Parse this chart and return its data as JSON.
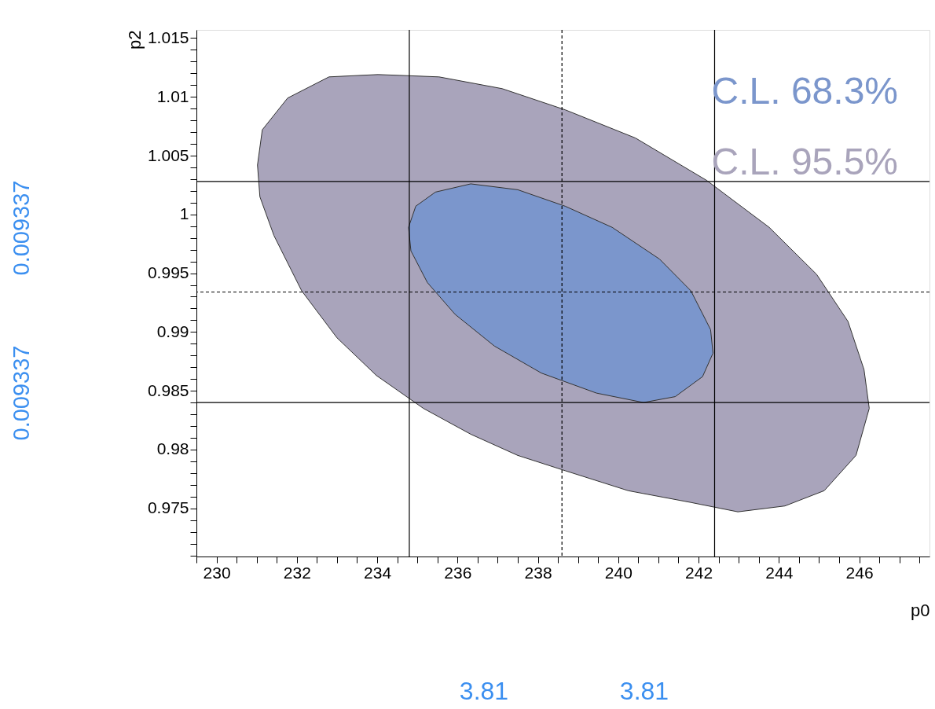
{
  "chart_data": {
    "type": "area",
    "xlabel": "p0",
    "ylabel": "p2",
    "xlim": [
      229.5,
      247.75
    ],
    "ylim": [
      0.9709,
      1.0157
    ],
    "xticks": [
      {
        "value": 229.5,
        "label": null
      },
      230,
      {
        "value": 230.5,
        "label": null
      },
      {
        "value": 231,
        "label": null
      },
      {
        "value": 231.5,
        "label": null
      },
      232,
      {
        "value": 232.5,
        "label": null
      },
      {
        "value": 233,
        "label": null
      },
      {
        "value": 233.5,
        "label": null
      },
      234,
      {
        "value": 234.5,
        "label": null
      },
      {
        "value": 235,
        "label": null
      },
      {
        "value": 235.5,
        "label": null
      },
      236,
      {
        "value": 236.5,
        "label": null
      },
      {
        "value": 237,
        "label": null
      },
      {
        "value": 237.5,
        "label": null
      },
      238,
      {
        "value": 238.5,
        "label": null
      },
      {
        "value": 239,
        "label": null
      },
      {
        "value": 239.5,
        "label": null
      },
      240,
      {
        "value": 240.5,
        "label": null
      },
      {
        "value": 241,
        "label": null
      },
      {
        "value": 241.5,
        "label": null
      },
      242,
      {
        "value": 242.5,
        "label": null
      },
      {
        "value": 243,
        "label": null
      },
      {
        "value": 243.5,
        "label": null
      },
      244,
      {
        "value": 244.5,
        "label": null
      },
      {
        "value": 245,
        "label": null
      },
      {
        "value": 245.5,
        "label": null
      },
      246,
      {
        "value": 246.5,
        "label": null
      },
      {
        "value": 247,
        "label": null
      },
      {
        "value": 247.5,
        "label": null
      }
    ],
    "yticks": [
      {
        "value": 0.971,
        "label": null
      },
      {
        "value": 0.972,
        "label": null
      },
      {
        "value": 0.973,
        "label": null
      },
      {
        "value": 0.974,
        "label": null
      },
      0.975,
      {
        "value": 0.976,
        "label": null
      },
      {
        "value": 0.977,
        "label": null
      },
      {
        "value": 0.978,
        "label": null
      },
      {
        "value": 0.979,
        "label": null
      },
      0.98,
      {
        "value": 0.981,
        "label": null
      },
      {
        "value": 0.982,
        "label": null
      },
      {
        "value": 0.983,
        "label": null
      },
      {
        "value": 0.984,
        "label": null
      },
      0.985,
      {
        "value": 0.986,
        "label": null
      },
      {
        "value": 0.987,
        "label": null
      },
      {
        "value": 0.988,
        "label": null
      },
      {
        "value": 0.989,
        "label": null
      },
      0.99,
      {
        "value": 0.991,
        "label": null
      },
      {
        "value": 0.992,
        "label": null
      },
      {
        "value": 0.993,
        "label": null
      },
      {
        "value": 0.994,
        "label": null
      },
      0.995,
      {
        "value": 0.996,
        "label": null
      },
      {
        "value": 0.997,
        "label": null
      },
      {
        "value": 0.998,
        "label": null
      },
      {
        "value": 0.999,
        "label": null
      },
      1,
      {
        "value": 1.001,
        "label": null
      },
      {
        "value": 1.002,
        "label": null
      },
      {
        "value": 1.003,
        "label": null
      },
      {
        "value": 1.004,
        "label": null
      },
      1.005,
      {
        "value": 1.006,
        "label": null
      },
      {
        "value": 1.007,
        "label": null
      },
      {
        "value": 1.008,
        "label": null
      },
      {
        "value": 1.009,
        "label": null
      },
      1.01,
      {
        "value": 1.011,
        "label": null
      },
      {
        "value": 1.012,
        "label": null
      },
      {
        "value": 1.013,
        "label": null
      },
      {
        "value": 1.014,
        "label": null
      },
      1.015
    ],
    "series": [
      {
        "name": "C.L. 95.5%",
        "color": "#a9a4bb",
        "x": [
          234.02,
          232.8,
          231.77,
          231.14,
          231.02,
          231.08,
          231.43,
          232.12,
          233.0,
          233.98,
          235.15,
          236.33,
          237.5,
          238.68,
          240.25,
          241.81,
          242.98,
          244.15,
          245.13,
          245.92,
          246.25,
          246.12,
          245.72,
          244.94,
          243.76,
          242.2,
          240.43,
          238.68,
          237.11,
          235.54,
          234.02
        ],
        "values": [
          1.0119,
          1.0117,
          1.0099,
          1.0072,
          1.0042,
          1.0015,
          0.9982,
          0.9935,
          0.9895,
          0.9863,
          0.9835,
          0.9813,
          0.9795,
          0.9782,
          0.9765,
          0.9755,
          0.9747,
          0.9752,
          0.9765,
          0.9795,
          0.9835,
          0.9868,
          0.9909,
          0.9949,
          0.9989,
          1.0029,
          1.0065,
          1.0089,
          1.0107,
          1.0117,
          1.0119
        ]
      },
      {
        "name": "C.L. 68.3%",
        "color": "#7b96cc",
        "x": [
          236.33,
          235.45,
          234.96,
          234.78,
          234.84,
          235.25,
          235.94,
          236.92,
          238.09,
          239.46,
          240.63,
          241.42,
          242.1,
          242.36,
          242.3,
          241.81,
          241.03,
          239.85,
          238.68,
          237.5,
          236.33
        ],
        "values": [
          1.0026,
          1.0019,
          1.0007,
          0.9989,
          0.9969,
          0.9942,
          0.9915,
          0.9888,
          0.9865,
          0.9848,
          0.984,
          0.9845,
          0.9862,
          0.9882,
          0.9902,
          0.9935,
          0.9962,
          0.9989,
          1.0007,
          1.0021,
          1.0026
        ]
      }
    ],
    "ref_lines": [
      {
        "axis": "x",
        "value": 234.8,
        "line_style": "solid"
      },
      {
        "axis": "x",
        "value": 238.6,
        "line_style": "dashed"
      },
      {
        "axis": "x",
        "value": 242.4,
        "line_style": "solid"
      },
      {
        "axis": "y",
        "value": 1.0028,
        "line_style": "solid"
      },
      {
        "axis": "y",
        "value": 0.9934,
        "line_style": "dashed"
      },
      {
        "axis": "y",
        "value": 0.984,
        "line_style": "solid"
      }
    ],
    "annotations": [
      "0.009337",
      "0.009337",
      "3.81",
      "3.81"
    ],
    "legend": "top right",
    "grid": false
  }
}
